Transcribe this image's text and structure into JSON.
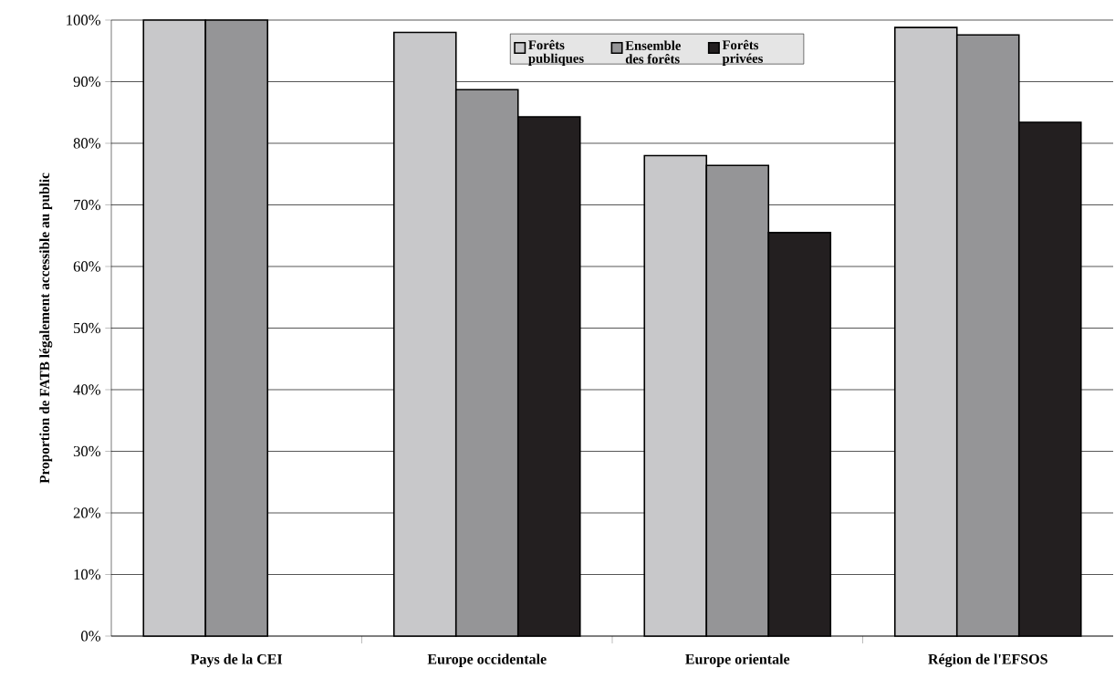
{
  "chart_data": {
    "type": "bar",
    "ylabel": "Proportion de FATB légalement accessible au public",
    "categories": [
      "Pays de la CEI",
      "Europe occidentale",
      "Europe orientale",
      "Région de l'EFSOS"
    ],
    "series": [
      {
        "name": "Forêts publiques",
        "color": "#c8c8ca",
        "values": [
          100,
          98,
          78,
          98.8
        ]
      },
      {
        "name": "Ensemble des forêts",
        "color": "#959597",
        "values": [
          100,
          88.7,
          76.4,
          97.6
        ]
      },
      {
        "name": "Forêts privées",
        "color": "#231f20",
        "values": [
          null,
          84.3,
          65.5,
          83.4
        ]
      }
    ],
    "ylim": [
      0,
      100
    ],
    "yticks": [
      {
        "value": 0,
        "label": "0%"
      },
      {
        "value": 10,
        "label": "10%"
      },
      {
        "value": 20,
        "label": "20%"
      },
      {
        "value": 30,
        "label": "30%"
      },
      {
        "value": 40,
        "label": "40%"
      },
      {
        "value": 50,
        "label": "50%"
      },
      {
        "value": 60,
        "label": "60%"
      },
      {
        "value": 70,
        "label": "70%"
      },
      {
        "value": 80,
        "label": "80%"
      },
      {
        "value": 90,
        "label": "90%"
      },
      {
        "value": 100,
        "label": "100%"
      }
    ],
    "grid": "y",
    "legend": "top right"
  }
}
